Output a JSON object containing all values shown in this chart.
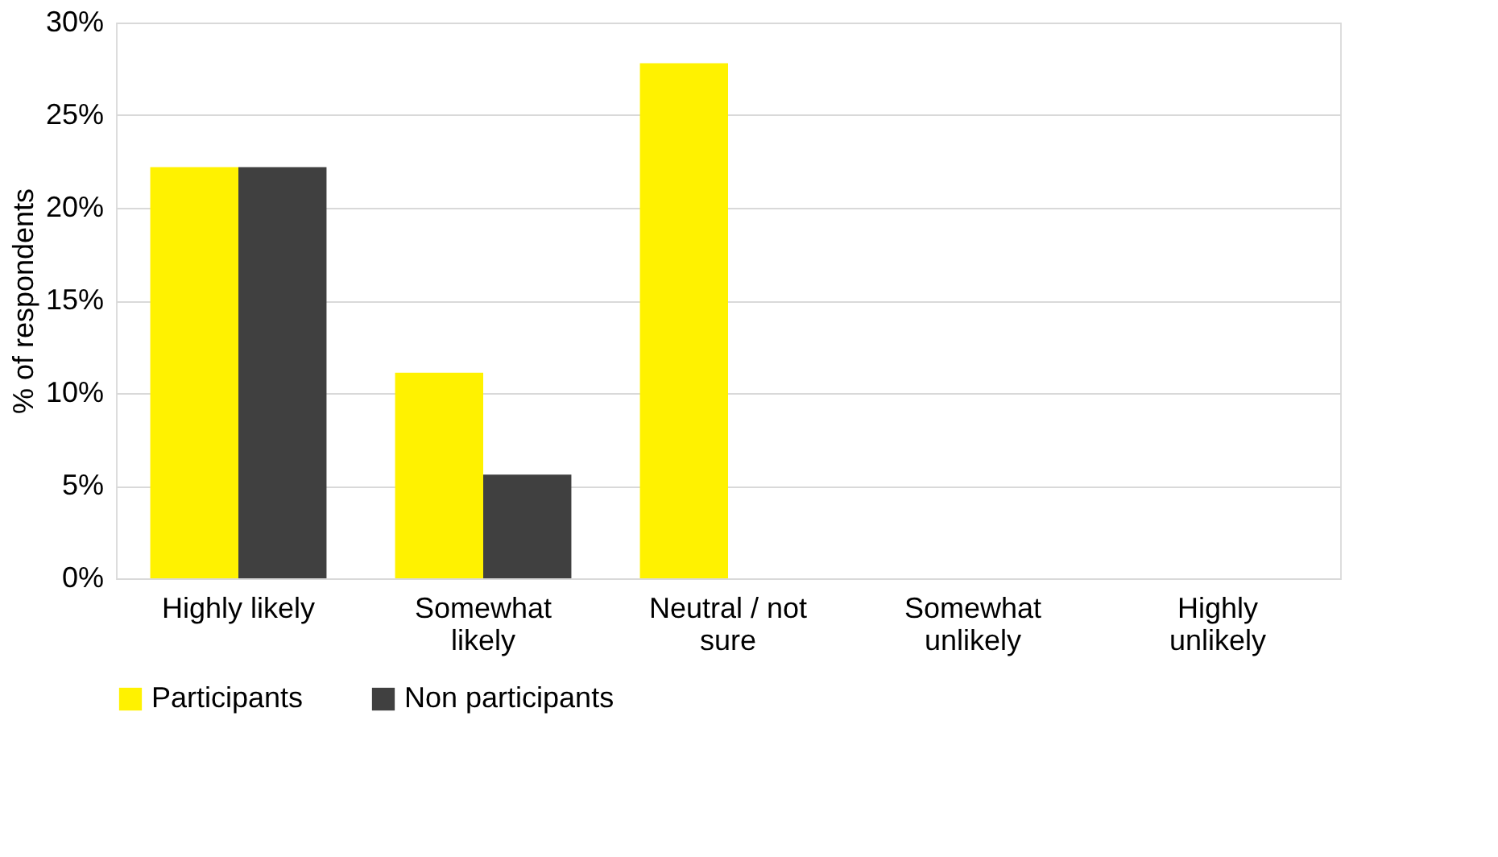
{
  "chart_data": {
    "type": "bar",
    "ylabel": "% of respondents",
    "categories": [
      "Highly likely",
      "Somewhat likely",
      "Neutral / not sure",
      "Somewhat unlikely",
      "Highly unlikely"
    ],
    "series": [
      {
        "name": "Participants",
        "color": "#fff200",
        "values": [
          22.2,
          11.1,
          27.8,
          0,
          0
        ]
      },
      {
        "name": "Non participants",
        "color": "#404040",
        "values": [
          22.2,
          5.6,
          0,
          0,
          0
        ]
      }
    ],
    "ylim": [
      0,
      30
    ],
    "yticks": [
      {
        "value": 0,
        "label": "0%"
      },
      {
        "value": 5,
        "label": "5%"
      },
      {
        "value": 10,
        "label": "10%"
      },
      {
        "value": 15,
        "label": "15%"
      },
      {
        "value": 20,
        "label": "20%"
      },
      {
        "value": 25,
        "label": "25%"
      },
      {
        "value": 30,
        "label": "30%"
      }
    ],
    "grid": "y",
    "legend": "bottom"
  }
}
